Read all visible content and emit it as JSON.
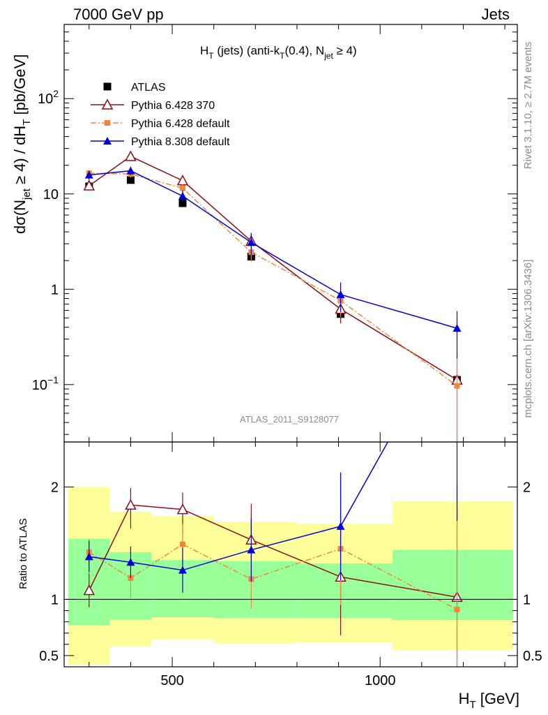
{
  "header": {
    "left": "7000 GeV pp",
    "right": "Jets"
  },
  "side_labels": {
    "version": "Rivet 3.1.10, ≥ 2.7M events",
    "source": "mcplots.cern.ch [arXiv:1306.3436]"
  },
  "chart_data": [
    {
      "type": "line",
      "panel": "main",
      "title": {
        "main": "H",
        "sub_t": "T",
        "middle": " (jets) (anti-k",
        "sub_t2": "T",
        "after": "(0.4), N",
        "sub_jet": "jet",
        "end": " ≥ 4)"
      },
      "ylabel": {
        "part1": "dσ(N",
        "sub1": "jet",
        "part2": " ≥ 4) / dH",
        "sub2": "T",
        "part3": " [pb/GeV]"
      },
      "yscale": "log",
      "ylim": [
        0.025,
        600
      ],
      "xlim": [
        240,
        1330
      ],
      "yticks": [
        {
          "value": 0.1,
          "base": "10",
          "exp": "−1"
        },
        {
          "value": 1,
          "label": "1"
        },
        {
          "value": 10,
          "label": "10"
        },
        {
          "value": 100,
          "base": "10",
          "exp": "2"
        }
      ],
      "watermark": "ATLAS_2011_S9128077",
      "legend_position": "top-left",
      "series": [
        {
          "name": "ATLAS",
          "color": "#000000",
          "marker": "square",
          "x": [
            300,
            400,
            525,
            690,
            905,
            1185
          ],
          "y": [
            12.0,
            14.0,
            8.0,
            2.2,
            0.55,
            0.112
          ],
          "yerr": [
            0.6,
            0.7,
            0.4,
            0.12,
            0.04,
            0.01
          ]
        },
        {
          "name": "Pythia 6.428 370",
          "color": "#8b0e16",
          "marker": "open-triangle",
          "linestyle": "solid",
          "x": [
            300,
            400,
            525,
            690,
            905,
            1185
          ],
          "y": [
            12.2,
            24.8,
            13.8,
            3.2,
            0.62,
            0.112
          ],
          "yerr": [
            1.2,
            2.2,
            1.5,
            0.65,
            0.18,
            0.09
          ]
        },
        {
          "name": "Pythia 6.428 default",
          "color": "#f0883a",
          "marker": "square-small",
          "linestyle": "dashdot",
          "x": [
            300,
            400,
            525,
            690,
            905,
            1185
          ],
          "y": [
            16.5,
            16.2,
            11.5,
            2.45,
            0.76,
            0.097
          ],
          "yerr": [
            1.2,
            1.3,
            1.1,
            0.5,
            0.25,
            0.09
          ]
        },
        {
          "name": "Pythia 8.308 default",
          "color": "#0000dd",
          "marker": "triangle",
          "linestyle": "solid",
          "x": [
            300,
            400,
            525,
            690,
            905,
            1185
          ],
          "y": [
            15.8,
            17.5,
            9.5,
            3.1,
            0.88,
            0.39
          ],
          "yerr": [
            1.8,
            1.8,
            1.4,
            0.8,
            0.3,
            0.2
          ]
        }
      ]
    },
    {
      "type": "line",
      "panel": "ratio",
      "ylabel": "Ratio to ATLAS",
      "xlabel": {
        "main": "H",
        "sub": "T",
        "unit": " [GeV]"
      },
      "ylim": [
        0.4,
        2.4
      ],
      "xlim": [
        240,
        1330
      ],
      "xticks": [
        500,
        1000
      ],
      "yticks": [
        0.5,
        1,
        2
      ],
      "reference_line": 1,
      "bands": {
        "edges": [
          250,
          350,
          450,
          600,
          800,
          1030,
          1320
        ],
        "stat_color": "#99ff99",
        "total_color": "#ffff99",
        "inner_lo": [
          0.77,
          0.82,
          0.84,
          0.835,
          0.835,
          0.815
        ],
        "inner_hi": [
          1.54,
          1.42,
          1.35,
          1.34,
          1.32,
          1.44
        ],
        "outer_lo": [
          0.42,
          0.58,
          0.64,
          0.61,
          0.615,
          0.55
        ],
        "outer_hi": [
          2.0,
          1.78,
          1.74,
          1.69,
          1.67,
          1.87
        ]
      },
      "series": [
        {
          "name": "Pythia 6.428 370",
          "color": "#8b0e16",
          "marker": "open-triangle",
          "linestyle": "solid",
          "x": [
            300,
            400,
            525,
            690,
            905,
            1185
          ],
          "y": [
            1.08,
            1.84,
            1.8,
            1.53,
            1.2,
            1.02
          ],
          "ylo": [
            0.93,
            1.63,
            1.58,
            1.32,
            0.68,
            0.35
          ],
          "yhi": [
            1.23,
            1.99,
            1.95,
            1.85,
            2.12,
            2.03
          ]
        },
        {
          "name": "Pythia 6.428 default",
          "color": "#f0883a",
          "marker": "square-small",
          "linestyle": "dashdot",
          "x": [
            300,
            400,
            525,
            690,
            905,
            1185
          ],
          "y": [
            1.42,
            1.19,
            1.49,
            1.18,
            1.45,
            0.91
          ],
          "yerr": [
            0.12,
            0.18,
            0.18,
            0.26,
            0.5,
            0.9
          ]
        },
        {
          "name": "Pythia 8.308 default",
          "color": "#0000dd",
          "marker": "triangle",
          "linestyle": "solid",
          "x": [
            300,
            400,
            525,
            690,
            905,
            1185
          ],
          "y": [
            1.38,
            1.33,
            1.26,
            1.44,
            1.65,
            3.5
          ],
          "yerr": [
            0.14,
            0.14,
            0.2,
            0.28,
            0.48,
            1.8
          ]
        }
      ]
    }
  ]
}
